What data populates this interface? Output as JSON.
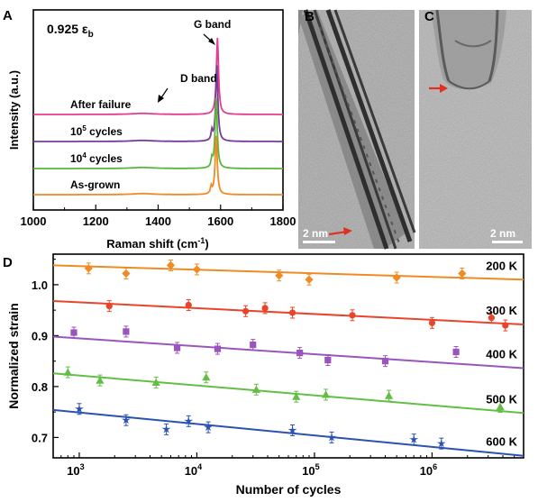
{
  "chart_data": [
    {
      "panel": "A",
      "type": "line",
      "annotation": "0.925 ε",
      "annotation_sub": "b",
      "xlabel": "Raman shift (cm",
      "xlabel_sup": "-1",
      "xlabel_end": ")",
      "ylabel": "Intensity (a.u.)",
      "xlim": [
        1000,
        1800
      ],
      "xticks": [
        "1000",
        "1200",
        "1400",
        "1600",
        "1800"
      ],
      "peak_labels": {
        "g": "G band",
        "d": "D band"
      },
      "series": [
        {
          "name": "After failure",
          "color": "#e63c8c",
          "g_peak": 1590,
          "d_peak": null
        },
        {
          "name": "10",
          "name_sup": "5",
          "name_end": " cycles",
          "color": "#7a3a9a",
          "g_peak": 1588,
          "d_peak": 1572
        },
        {
          "name": "10",
          "name_sup": "4",
          "name_end": " cycles",
          "color": "#5ab53c",
          "g_peak": 1586,
          "d_peak": 1572
        },
        {
          "name": "As-grown",
          "color": "#f08a24",
          "g_peak": 1586,
          "d_peak": 1570
        }
      ]
    },
    {
      "panel": "D",
      "type": "scatter",
      "xlabel": "Number of cycles",
      "ylabel": "Normalized strain",
      "xscale": "log",
      "xlim": [
        600,
        6000000
      ],
      "ylim": [
        0.66,
        1.06
      ],
      "xticks": [
        {
          "base": "10",
          "exp": "3"
        },
        {
          "base": "10",
          "exp": "4"
        },
        {
          "base": "10",
          "exp": "5"
        },
        {
          "base": "10",
          "exp": "6"
        }
      ],
      "yticks": [
        "0.7",
        "0.8",
        "0.9",
        "1.0"
      ],
      "series": [
        {
          "name": "200 K",
          "color": "#f08a24",
          "marker": "diamond",
          "x": [
            1200,
            2500,
            6000,
            10000,
            50000,
            90000,
            500000,
            1800000
          ],
          "y": [
            1.032,
            1.022,
            1.038,
            1.03,
            1.018,
            1.01,
            1.014,
            1.022
          ],
          "fit": [
            1.038,
            1.01
          ]
        },
        {
          "name": "300 K",
          "color": "#e8452a",
          "marker": "circle",
          "x": [
            1800,
            8500,
            26000,
            38000,
            65000,
            210000,
            1000000,
            3200000,
            4200000
          ],
          "y": [
            0.958,
            0.96,
            0.948,
            0.954,
            0.945,
            0.94,
            0.925,
            0.935,
            0.92
          ],
          "fit": [
            0.968,
            0.922
          ]
        },
        {
          "name": "400 K",
          "color": "#9a55bc",
          "marker": "square",
          "x": [
            900,
            2500,
            6800,
            15000,
            30000,
            75000,
            130000,
            400000,
            1600000
          ],
          "y": [
            0.906,
            0.908,
            0.876,
            0.874,
            0.882,
            0.866,
            0.852,
            0.85,
            0.868
          ],
          "fit": [
            0.898,
            0.836
          ]
        },
        {
          "name": "500 K",
          "color": "#62be44",
          "marker": "triangle",
          "x": [
            800,
            1500,
            4500,
            12000,
            32000,
            70000,
            125000,
            430000,
            3800000
          ],
          "y": [
            0.828,
            0.812,
            0.808,
            0.818,
            0.794,
            0.78,
            0.784,
            0.782,
            0.76
          ],
          "fit": [
            0.826,
            0.748
          ]
        },
        {
          "name": "600 K",
          "color": "#2a52b0",
          "marker": "star",
          "x": [
            1000,
            2500,
            5500,
            8500,
            12500,
            65000,
            140000,
            700000,
            1200000
          ],
          "y": [
            0.756,
            0.734,
            0.716,
            0.732,
            0.72,
            0.714,
            0.7,
            0.696,
            0.688
          ],
          "fit": [
            0.754,
            0.664
          ]
        }
      ]
    }
  ],
  "panel_letters": {
    "a": "A",
    "b": "B",
    "c": "C",
    "d": "D"
  },
  "scale_bars": {
    "b": "2 nm",
    "c": "2 nm"
  }
}
